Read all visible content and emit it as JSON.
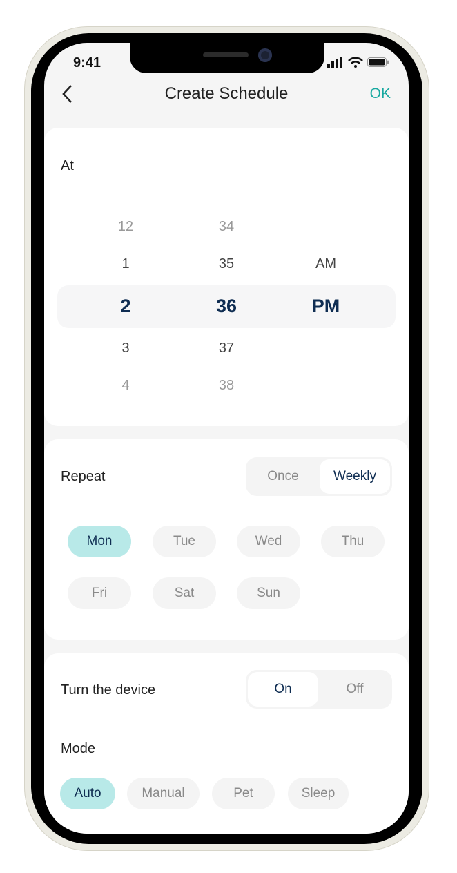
{
  "status_bar": {
    "time": "9:41"
  },
  "header": {
    "title": "Create Schedule",
    "ok_label": "OK",
    "back_icon": "chevron-left-icon"
  },
  "time_picker": {
    "label": "At",
    "hours": [
      "12",
      "1",
      "2",
      "3",
      "4"
    ],
    "minutes": [
      "34",
      "35",
      "36",
      "37",
      "38"
    ],
    "periods": [
      "AM",
      "PM"
    ],
    "selected": {
      "hour": "2",
      "minute": "36",
      "period": "PM"
    }
  },
  "repeat": {
    "label": "Repeat",
    "options": [
      "Once",
      "Weekly"
    ],
    "selected": "Weekly",
    "days": [
      "Mon",
      "Tue",
      "Wed",
      "Thu",
      "Fri",
      "Sat",
      "Sun"
    ],
    "selected_days": [
      "Mon"
    ]
  },
  "device": {
    "label": "Turn the device",
    "options": [
      "On",
      "Off"
    ],
    "selected": "On"
  },
  "mode": {
    "label": "Mode",
    "options": [
      "Auto",
      "Manual",
      "Pet",
      "Sleep"
    ],
    "selected": "Auto"
  },
  "colors": {
    "accent": "#17a8a0",
    "chip_selected": "#b8e9e8",
    "selected_text": "#0f2d52"
  }
}
